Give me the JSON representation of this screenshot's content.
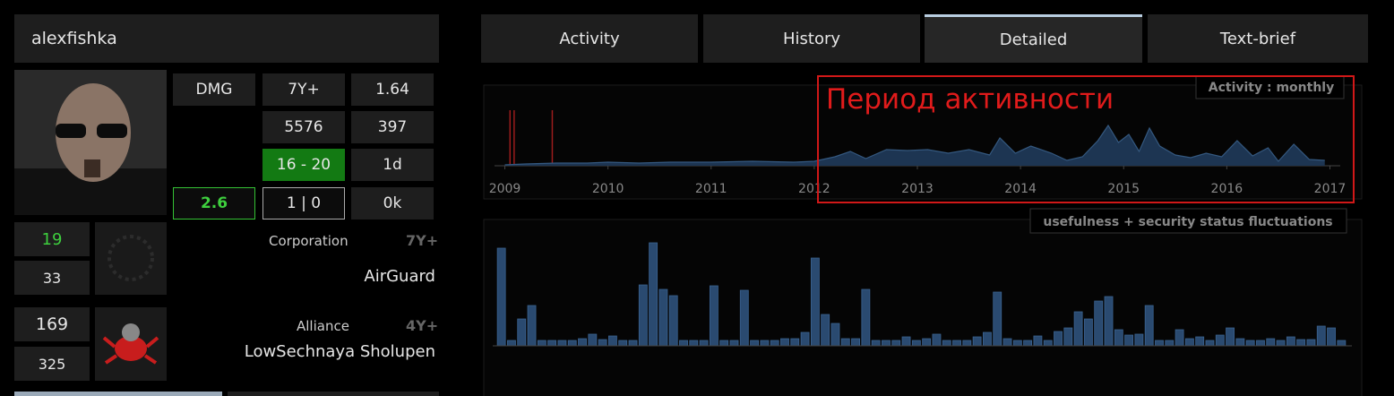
{
  "profile": {
    "name": "alexfishka",
    "stats": [
      "DMG",
      "7Y+",
      "1.64",
      "5576",
      "397",
      "16 - 20",
      "1d",
      "2.6",
      "1 | 0",
      "0k"
    ],
    "corporation": {
      "label": "Corporation",
      "age": "7Y+",
      "name": "AirGuard",
      "counts": [
        "19",
        "33"
      ]
    },
    "alliance": {
      "label": "Alliance",
      "age": "4Y+",
      "name": "LowSechnaya Sholupen",
      "counts": [
        "169",
        "325"
      ]
    }
  },
  "tabs": [
    "Activity",
    "History",
    "Detailed",
    "Text-brief"
  ],
  "active_tab": "Detailed",
  "annotation": "Период активности",
  "chart_data": [
    {
      "type": "area",
      "title": "Activity : monthly",
      "x": [
        2009.0,
        2009.2,
        2009.5,
        2009.8,
        2010.0,
        2010.3,
        2010.6,
        2011.0,
        2011.4,
        2011.8,
        2012.0,
        2012.2,
        2012.35,
        2012.5,
        2012.7,
        2012.9,
        2013.1,
        2013.3,
        2013.5,
        2013.7,
        2013.8,
        2013.95,
        2014.1,
        2014.3,
        2014.45,
        2014.6,
        2014.75,
        2014.85,
        2014.95,
        2015.05,
        2015.15,
        2015.25,
        2015.35,
        2015.5,
        2015.65,
        2015.8,
        2015.95,
        2016.1,
        2016.25,
        2016.4,
        2016.5,
        2016.65,
        2016.8,
        2016.95
      ],
      "values": [
        1,
        2,
        3,
        3,
        4,
        3,
        4,
        4,
        5,
        4,
        5,
        10,
        16,
        8,
        18,
        17,
        18,
        14,
        18,
        12,
        31,
        14,
        22,
        14,
        6,
        10,
        28,
        45,
        26,
        35,
        16,
        42,
        22,
        12,
        9,
        14,
        10,
        28,
        11,
        20,
        5,
        24,
        7,
        6
      ],
      "color": "#1d3552",
      "events": {
        "color": "#9b1c1c",
        "x": [
          2009.05,
          2009.09,
          2009.46
        ]
      },
      "xlim": [
        2008.9,
        2017.1
      ],
      "xticks": [
        2009,
        2010,
        2011,
        2012,
        2013,
        2014,
        2015,
        2016,
        2017
      ],
      "ylim": [
        0,
        50
      ]
    },
    {
      "type": "bar",
      "title": "usefulness + security status fluctuations",
      "values": [
        109,
        6,
        30,
        45,
        6,
        6,
        6,
        6,
        8,
        13,
        7,
        11,
        6,
        6,
        68,
        115,
        63,
        56,
        6,
        6,
        6,
        67,
        6,
        6,
        62,
        6,
        6,
        6,
        8,
        8,
        15,
        98,
        35,
        25,
        8,
        8,
        63,
        6,
        6,
        6,
        10,
        6,
        8,
        13,
        6,
        6,
        6,
        10,
        15,
        60,
        8,
        6,
        6,
        11,
        6,
        16,
        20,
        38,
        30,
        50,
        55,
        18,
        12,
        13,
        45,
        6,
        6,
        18,
        8,
        10,
        6,
        12,
        20,
        8,
        6,
        6,
        8,
        6,
        10,
        7,
        7,
        22,
        20,
        6
      ],
      "color": "#2a4a70",
      "ylim": [
        0,
        120
      ]
    }
  ]
}
